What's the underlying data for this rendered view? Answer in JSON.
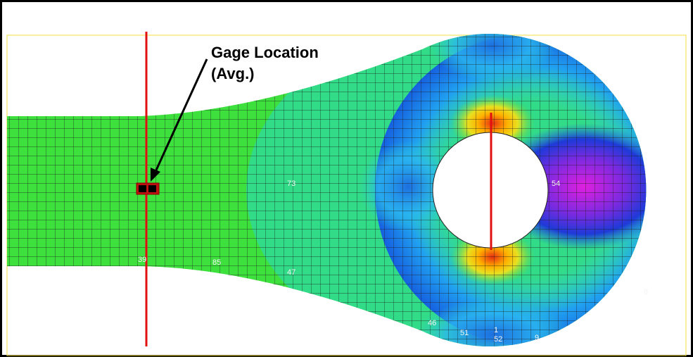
{
  "annotation": {
    "title": "Gage Location",
    "subtitle": "(Avg.)"
  },
  "node_labels": [
    "73",
    "54",
    "39",
    "85",
    "47",
    "46",
    "51",
    "1",
    "52",
    "9",
    "8"
  ]
}
